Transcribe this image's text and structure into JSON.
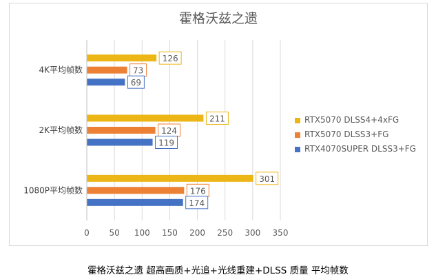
{
  "chart_data": {
    "type": "bar",
    "orientation": "horizontal",
    "title": "霍格沃兹之遗",
    "categories": [
      "4K平均帧数",
      "2K平均帧数",
      "1080P平均帧数"
    ],
    "series": [
      {
        "name": "RTX5070 DLSS4+4xFG",
        "color": "#ecb617",
        "values": [
          126,
          211,
          301
        ]
      },
      {
        "name": "RTX5070 DLSS3+FG",
        "color": "#ec8136",
        "values": [
          73,
          124,
          176
        ]
      },
      {
        "name": "RTX4070SUPER DLSS3+FG",
        "color": "#4472c4",
        "values": [
          69,
          119,
          174
        ]
      }
    ],
    "xlim": [
      0,
      350
    ],
    "xticks": [
      0,
      50,
      100,
      150,
      200,
      250,
      300,
      350
    ],
    "grid": true,
    "legend_position": "right",
    "data_labels": true
  },
  "caption": "霍格沃兹之遗 超高画质+光追+光线重建+DLSS 质量 平均帧数"
}
